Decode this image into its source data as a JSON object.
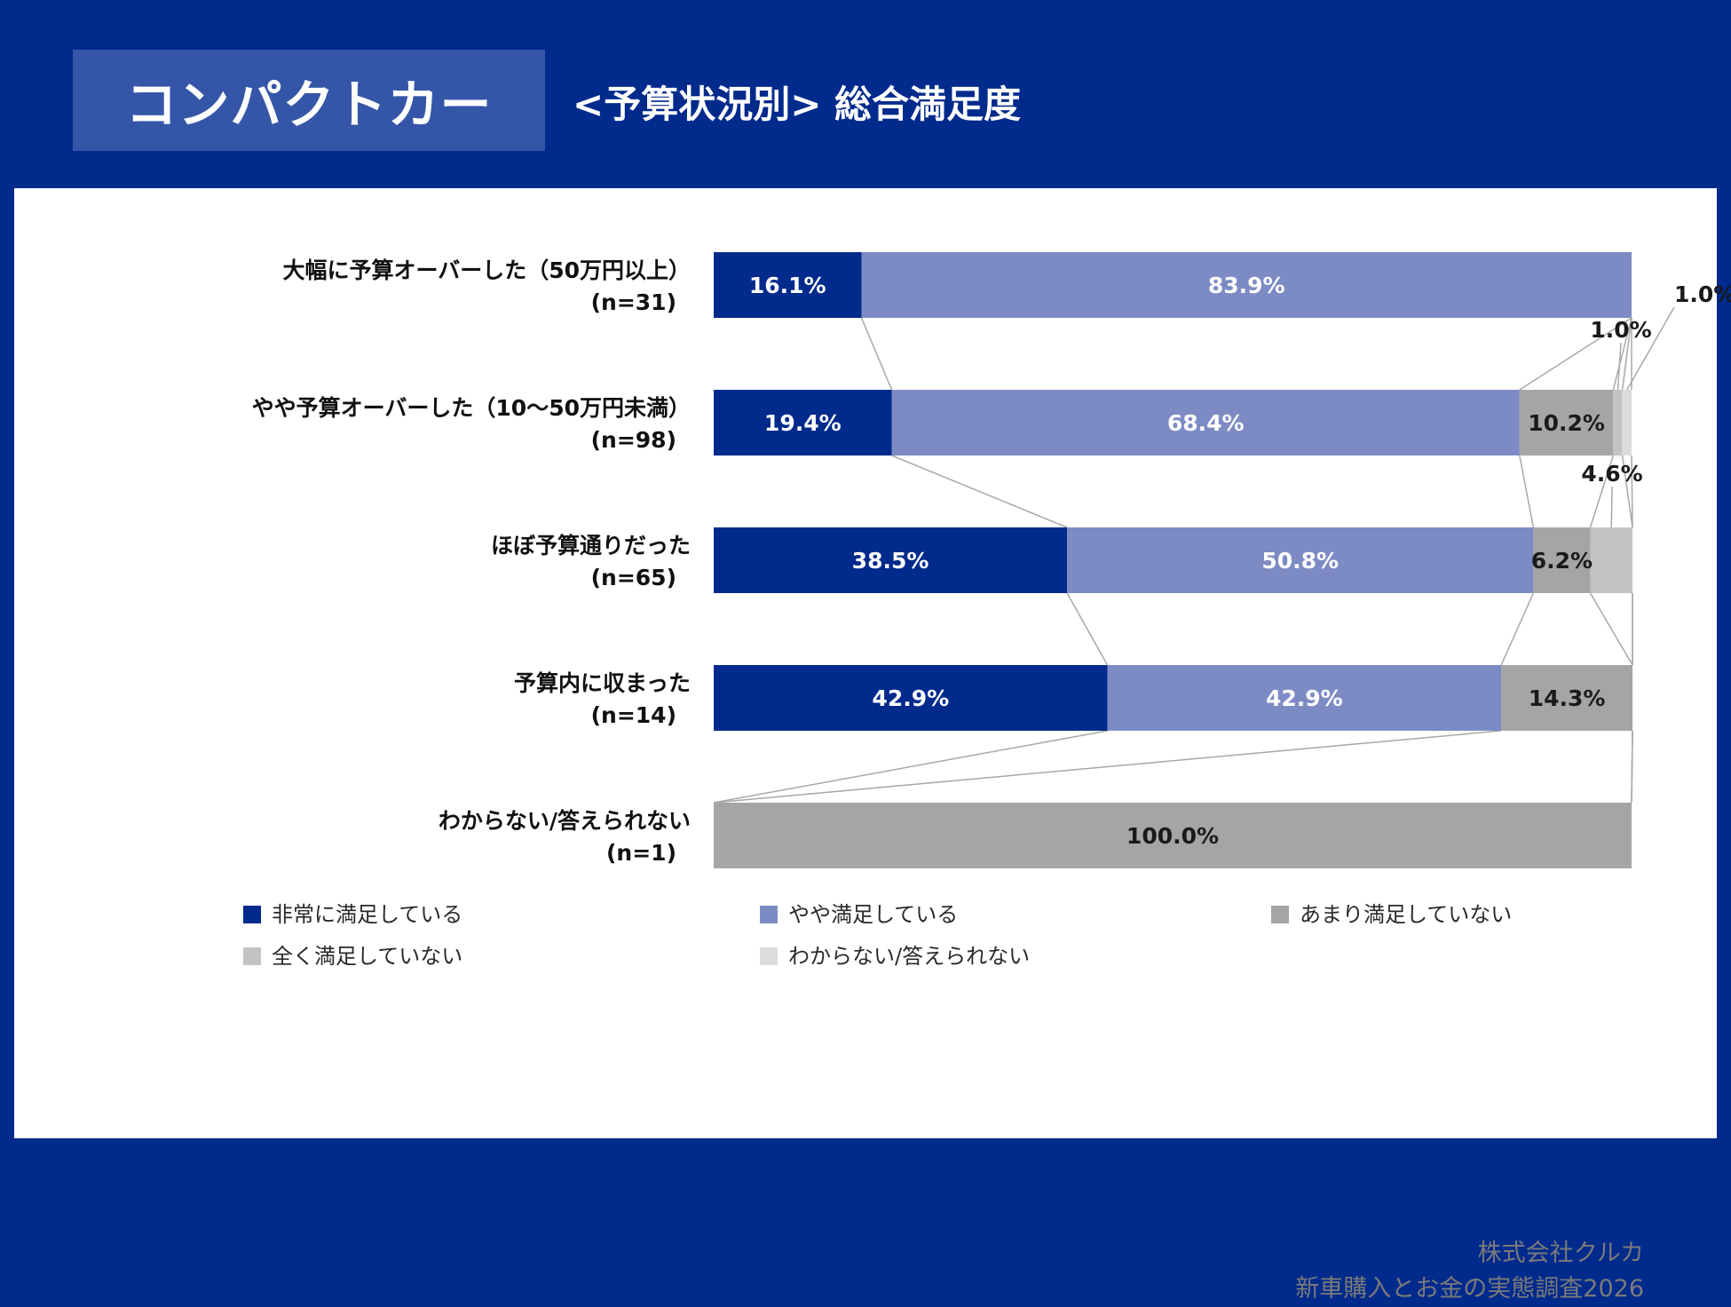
{
  "header": {
    "title": "コンパクトカー",
    "subtitle": "<予算状況別> 総合満足度"
  },
  "footer": {
    "company": "株式会社クルカ",
    "survey": "新車購入とお金の実態調査2026"
  },
  "colors": {
    "background": "#002a8c",
    "title_box": "#3556a8",
    "very_satisfied": "#002a8c",
    "somewhat_satisfied": "#7d8bc4",
    "not_very_satisfied": "#a5a5a5",
    "not_at_all_satisfied": "#c3c3c3",
    "unknown": "#dcdcdc"
  },
  "chart_data": {
    "type": "bar",
    "stacked": "100%",
    "orientation": "horizontal",
    "categories": [
      [
        "大幅に予算オーバーした（50万円以上）",
        "(n=31)"
      ],
      [
        "やや予算オーバーした（10～50万円未満）",
        "(n=98)"
      ],
      [
        "ほぼ予算通りだった",
        "(n=65)"
      ],
      [
        "予算内に収まった",
        "(n=14)"
      ],
      [
        "わからない/答えられない",
        "(n=1)"
      ]
    ],
    "series": [
      {
        "name": "非常に満足している",
        "color": "#002a8c",
        "values": [
          16.1,
          19.4,
          38.5,
          42.9,
          0
        ]
      },
      {
        "name": "やや満足している",
        "color": "#7d8bc4",
        "values": [
          83.9,
          68.4,
          50.8,
          42.9,
          0
        ]
      },
      {
        "name": "あまり満足していない",
        "color": "#a5a5a5",
        "values": [
          0,
          10.2,
          6.2,
          14.3,
          100.0
        ]
      },
      {
        "name": "全く満足していない",
        "color": "#c3c3c3",
        "values": [
          0,
          1.0,
          4.6,
          0,
          0
        ]
      },
      {
        "name": "わからない/答えられない",
        "color": "#dcdcdc",
        "values": [
          0,
          1.0,
          0,
          0,
          0
        ]
      }
    ],
    "labels": [
      [
        "16.1%",
        "83.9%",
        "",
        "",
        ""
      ],
      [
        "19.4%",
        "68.4%",
        "10.2%",
        "1.0%",
        "1.0%"
      ],
      [
        "38.5%",
        "50.8%",
        "6.2%",
        "4.6%",
        ""
      ],
      [
        "42.9%",
        "42.9%",
        "14.3%",
        "",
        ""
      ],
      [
        "",
        "",
        "100.0%",
        "",
        ""
      ]
    ],
    "xlim": [
      0,
      100
    ],
    "series_lines": true,
    "legend_position": "bottom"
  }
}
